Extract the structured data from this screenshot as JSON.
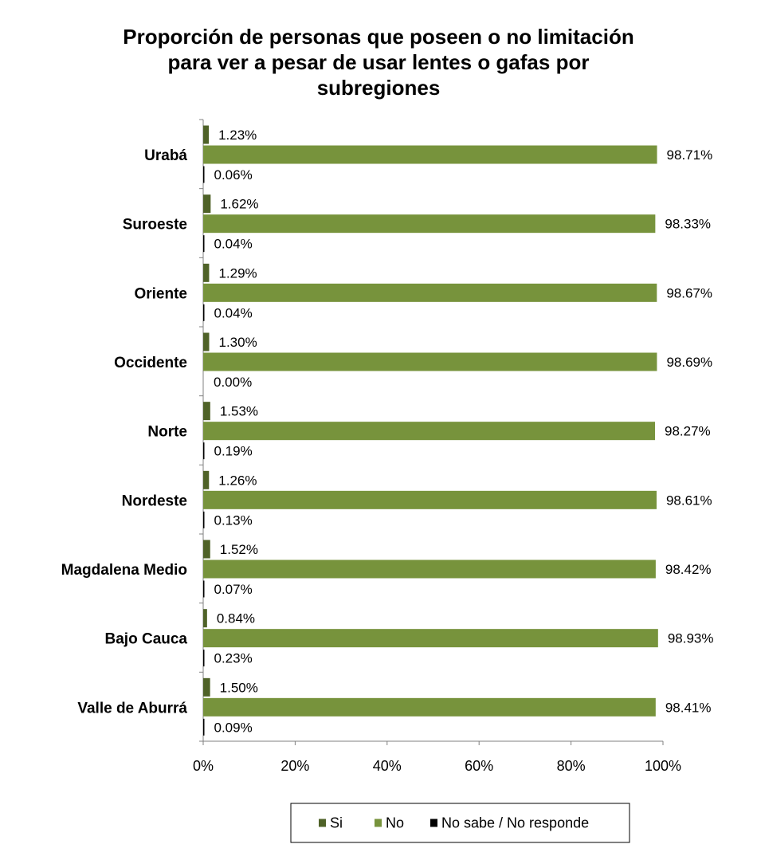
{
  "chart_data": {
    "type": "bar",
    "orientation": "horizontal",
    "title_lines": [
      "Proporción de personas que poseen o no limitación",
      "para ver a pesar de usar lentes o gafas   por",
      "subregiones"
    ],
    "categories": [
      "Urabá",
      "Suroeste",
      "Oriente",
      "Occidente",
      "Norte",
      "Nordeste",
      "Magdalena Medio",
      "Bajo Cauca",
      "Valle de Aburrá"
    ],
    "series": [
      {
        "name": "Si",
        "color": "#4F6228",
        "values": [
          1.23,
          1.62,
          1.29,
          1.3,
          1.53,
          1.26,
          1.52,
          0.84,
          1.5
        ],
        "labels": [
          "1.23%",
          "1.62%",
          "1.29%",
          "1.30%",
          "1.53%",
          "1.26%",
          "1.52%",
          "0.84%",
          "1.50%"
        ]
      },
      {
        "name": "No",
        "color": "#77933C",
        "values": [
          98.71,
          98.33,
          98.67,
          98.69,
          98.27,
          98.61,
          98.42,
          98.93,
          98.41
        ],
        "labels": [
          "98.71%",
          "98.33%",
          "98.67%",
          "98.69%",
          "98.27%",
          "98.61%",
          "98.42%",
          "98.93%",
          "98.41%"
        ]
      },
      {
        "name": "No sabe / No responde",
        "color": "#000000",
        "values": [
          0.06,
          0.04,
          0.04,
          0.0,
          0.19,
          0.13,
          0.07,
          0.23,
          0.09
        ],
        "labels": [
          "0.06%",
          "0.04%",
          "0.04%",
          "0.00%",
          "0.19%",
          "0.13%",
          "0.07%",
          "0.23%",
          "0.09%"
        ]
      }
    ],
    "xlim": [
      0,
      100
    ],
    "xticks": [
      "0%",
      "20%",
      "40%",
      "60%",
      "80%",
      "100%"
    ],
    "grid": false,
    "legend_position": "bottom"
  }
}
